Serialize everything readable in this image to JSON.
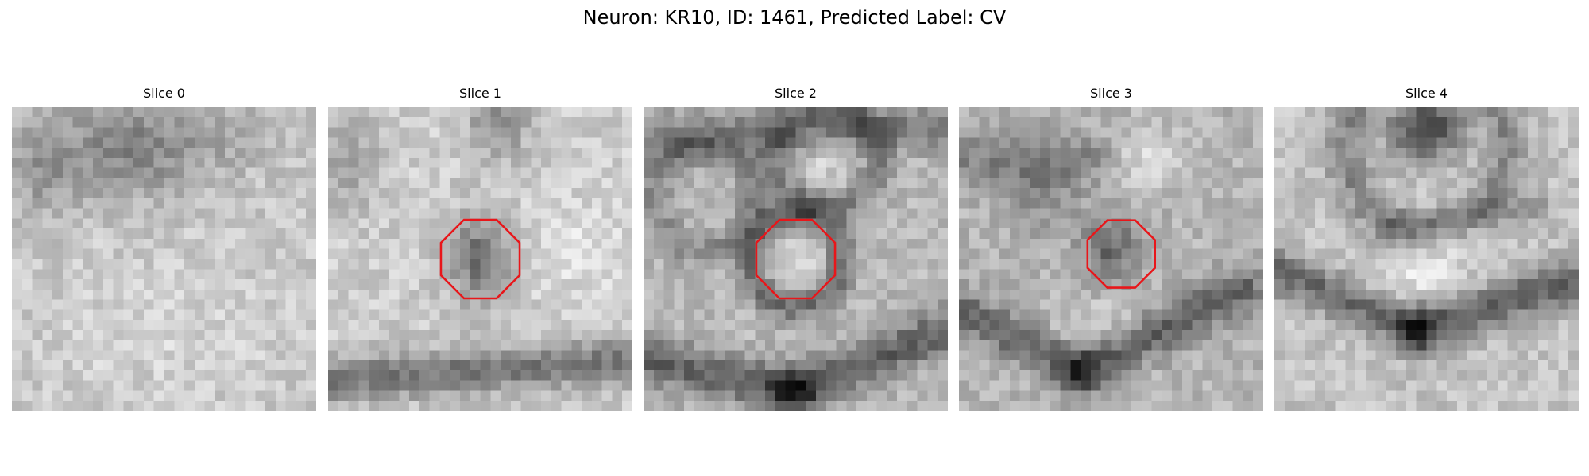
{
  "figure": {
    "title": "Neuron: KR10, ID: 1461, Predicted Label: CV",
    "colormap": "grayscale",
    "marker_color": "#e8161a",
    "marker_shape": "octagon"
  },
  "slices": [
    {
      "title": "Slice 0",
      "has_marker": false
    },
    {
      "title": "Slice 1",
      "has_marker": true
    },
    {
      "title": "Slice 2",
      "has_marker": true
    },
    {
      "title": "Slice 3",
      "has_marker": true
    },
    {
      "title": "Slice 4",
      "has_marker": false
    }
  ]
}
